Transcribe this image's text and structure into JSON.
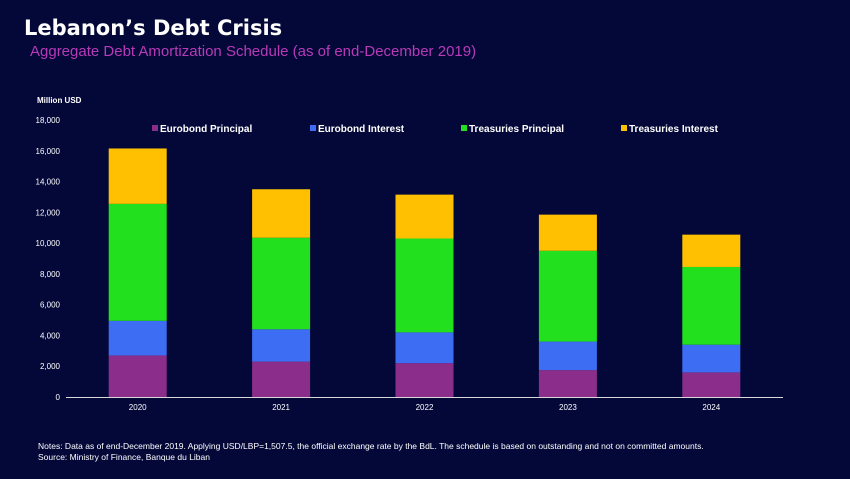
{
  "title": "Lebanon’s Debt Crisis",
  "subtitle": "Aggregate Debt Amortization Schedule (as of end-December 2019)",
  "notes": "Notes: Data as of end-December 2019. Applying USD/LBP=1,507.5, the official exchange rate by the BdL. The schedule is based on outstanding and not on committed amounts.",
  "source": "Source: Ministry of Finance, Banque du Liban",
  "chart_data": {
    "type": "bar",
    "stacked": true,
    "ylabel": "Million USD",
    "xlabel": "",
    "ylim": [
      0,
      18000
    ],
    "yticks": [
      {
        "value": 0,
        "label": "0"
      },
      {
        "value": 2000,
        "label": "2,000"
      },
      {
        "value": 4000,
        "label": "4,000"
      },
      {
        "value": 6000,
        "label": "6,000"
      },
      {
        "value": 8000,
        "label": "8,000"
      },
      {
        "value": 10000,
        "label": "10,000"
      },
      {
        "value": 12000,
        "label": "12,000"
      },
      {
        "value": 14000,
        "label": "14,000"
      },
      {
        "value": 16000,
        "label": "16,000"
      },
      {
        "value": 18000,
        "label": "18,000"
      }
    ],
    "grid": false,
    "legend_position": "top",
    "categories": [
      "2020",
      "2021",
      "2022",
      "2023",
      "2024"
    ],
    "series": [
      {
        "name": "Eurobond Principal",
        "color": "#8b2e8b",
        "values": [
          2700,
          2300,
          2200,
          1750,
          1600
        ]
      },
      {
        "name": "Eurobond Interest",
        "color": "#3d6df2",
        "values": [
          2250,
          2100,
          2000,
          1850,
          1800
        ]
      },
      {
        "name": "Treasuries Principal",
        "color": "#22e01e",
        "values": [
          7600,
          5950,
          6100,
          5900,
          5050
        ]
      },
      {
        "name": "Treasuries Interest",
        "color": "#fec000",
        "values": [
          3600,
          3150,
          2850,
          2350,
          2100
        ]
      }
    ]
  }
}
